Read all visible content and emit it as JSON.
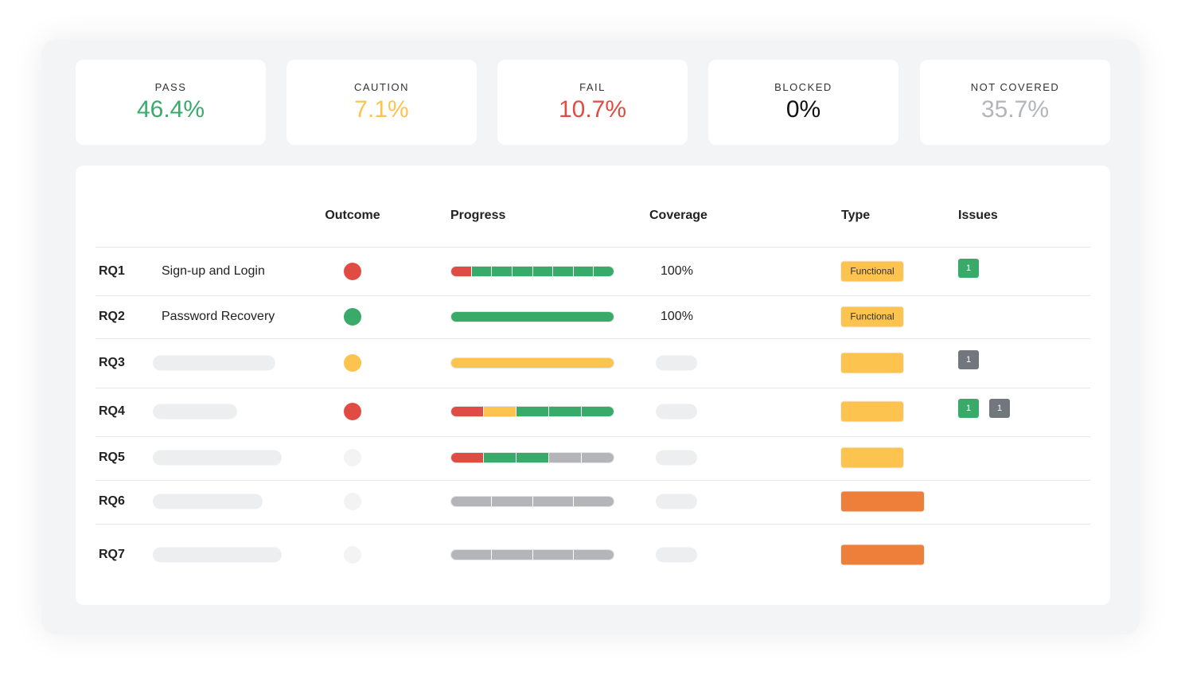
{
  "stats": [
    {
      "label": "PASS",
      "value": "46.4%",
      "color": "#3aaa6a"
    },
    {
      "label": "CAUTION",
      "value": "7.1%",
      "color": "#fcc44f"
    },
    {
      "label": "FAIL",
      "value": "10.7%",
      "color": "#e04c43"
    },
    {
      "label": "BLOCKED",
      "value": "0%",
      "color": "#111111"
    },
    {
      "label": "NOT COVERED",
      "value": "35.7%",
      "color": "#b3b5b8"
    }
  ],
  "table": {
    "headers": [
      "Outcome",
      "Progress",
      "Coverage",
      "Type",
      "Issues"
    ],
    "rows": [
      {
        "id": "RQ1",
        "name": "Sign-up and Login",
        "outcome": "#e04c43",
        "progress": [
          "#e04c43",
          "#3aaa6a",
          "#3aaa6a",
          "#3aaa6a",
          "#3aaa6a",
          "#3aaa6a",
          "#3aaa6a",
          "#3aaa6a"
        ],
        "coverage": "100%",
        "type": {
          "label": "Functional",
          "color": "#fcc44f"
        },
        "issues": [
          {
            "label": "1",
            "color": "#3aaa6a"
          }
        ]
      },
      {
        "id": "RQ2",
        "name": "Password Recovery",
        "outcome": "#3aaa6a",
        "progress": [
          "#3aaa6a"
        ],
        "coverage": "100%",
        "type": {
          "label": "Functional",
          "color": "#fcc44f"
        },
        "issues": []
      },
      {
        "id": "RQ3",
        "outcome": "#fcc44f",
        "progress": [
          "#fcc44f"
        ],
        "type": {
          "color": "#fcc44f"
        },
        "issues": [
          {
            "label": "1",
            "color": "#72767d"
          }
        ]
      },
      {
        "id": "RQ4",
        "outcome": "#e04c43",
        "progress": [
          "#e04c43",
          "#fcc44f",
          "#3aaa6a",
          "#3aaa6a",
          "#3aaa6a"
        ],
        "type": {
          "color": "#fcc44f"
        },
        "issues": [
          {
            "label": "1",
            "color": "#3aaa6a"
          },
          {
            "label": "1",
            "color": "#72767d"
          }
        ]
      },
      {
        "id": "RQ5",
        "outcome": "#f3f3f4",
        "progress": [
          "#e04c43",
          "#3aaa6a",
          "#3aaa6a",
          "#b3b5b8",
          "#b3b5b8"
        ],
        "type": {
          "color": "#fcc44f"
        },
        "issues": []
      },
      {
        "id": "RQ6",
        "outcome": "#f3f3f4",
        "progress": [
          "#b3b5b8",
          "#b3b5b8",
          "#b3b5b8",
          "#b3b5b8"
        ],
        "type": {
          "color": "#ee7f3a"
        },
        "issues": []
      },
      {
        "id": "RQ7",
        "outcome": "#f3f3f4",
        "progress": [
          "#b3b5b8",
          "#b3b5b8",
          "#b3b5b8",
          "#b3b5b8"
        ],
        "type": {
          "color": "#ee7f3a"
        },
        "issues": []
      }
    ]
  }
}
